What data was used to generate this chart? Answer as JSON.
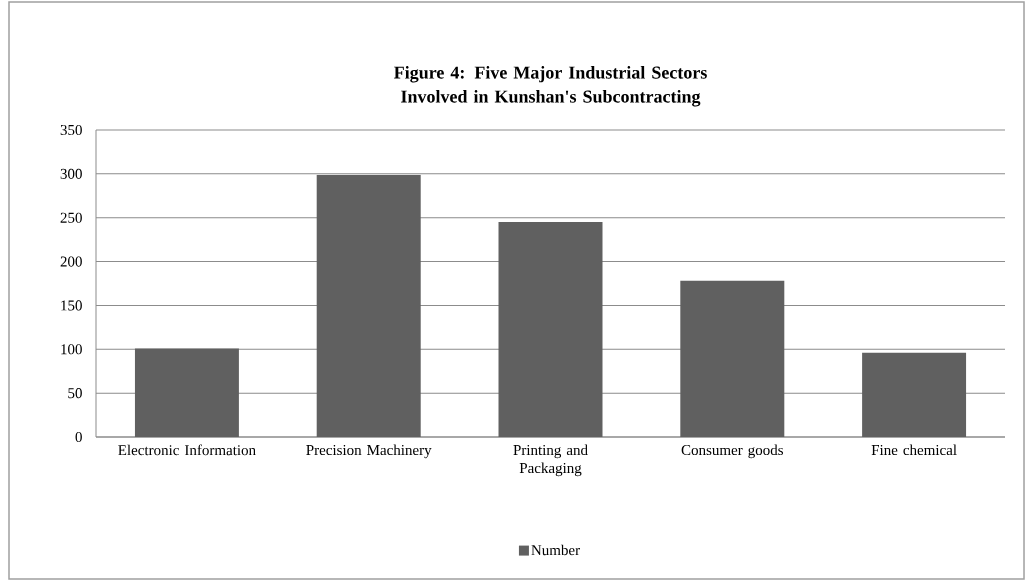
{
  "chart_data": {
    "type": "bar",
    "title": "Figure 4:  Five Major Industrial Sectors Involved in Kunshan's Subcontracting",
    "categories": [
      "Electronic Information",
      "Precision Machinery",
      "Printing and Packaging",
      "Consumer goods",
      "Fine chemical"
    ],
    "series": [
      {
        "name": "Number",
        "color": "#606060",
        "values": [
          101,
          299,
          245,
          178,
          96
        ]
      }
    ],
    "ylim": [
      0,
      350
    ],
    "yticks": [
      0,
      50,
      100,
      150,
      200,
      250,
      300,
      350
    ],
    "grid": "y",
    "legend": "bottom"
  }
}
